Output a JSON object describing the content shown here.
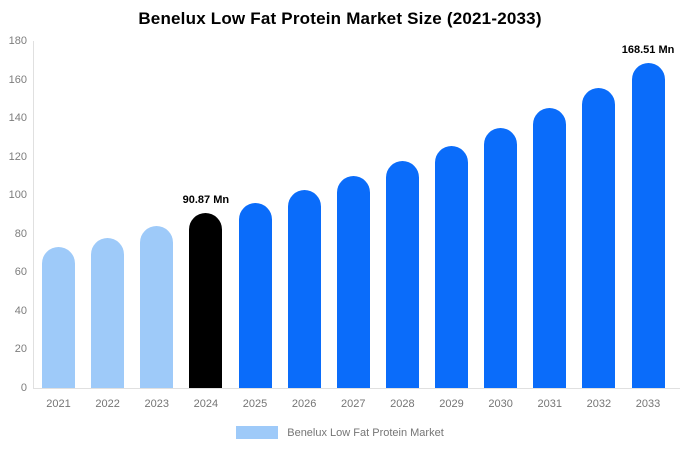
{
  "chart_data": {
    "type": "bar",
    "title": "Benelux Low Fat Protein Market Size (2021-2033)",
    "categories": [
      "2021",
      "2022",
      "2023",
      "2024",
      "2025",
      "2026",
      "2027",
      "2028",
      "2029",
      "2030",
      "2031",
      "2032",
      "2033"
    ],
    "values": [
      73,
      78,
      84,
      90.87,
      96,
      102.5,
      110,
      118,
      125.5,
      135,
      145,
      155.5,
      168.51
    ],
    "bar_colors": [
      "#9ecaf9",
      "#9ecaf9",
      "#9ecaf9",
      "#000000",
      "#0a6cfa",
      "#0a6cfa",
      "#0a6cfa",
      "#0a6cfa",
      "#0a6cfa",
      "#0a6cfa",
      "#0a6cfa",
      "#0a6cfa",
      "#0a6cfa"
    ],
    "annotations": [
      {
        "category": "2024",
        "text": "90.87 Mn"
      },
      {
        "category": "2033",
        "text": "168.51 Mn"
      }
    ],
    "xlabel": "",
    "ylabel": "",
    "ylim": [
      0,
      180
    ],
    "yticks": [
      0,
      20,
      40,
      60,
      80,
      100,
      120,
      140,
      160,
      180
    ],
    "grid": false,
    "legend": "Benelux Low Fat Protein Market",
    "legend_position": "bottom",
    "colors": {
      "historical_bar": "#9ecaf9",
      "base_year_bar": "#000000",
      "forecast_bar": "#0a6cfa",
      "axis_line": "#e0e0e0",
      "tick_text": "#7d7d7d",
      "legend_text": "#757575",
      "title_text": "#000000"
    }
  }
}
